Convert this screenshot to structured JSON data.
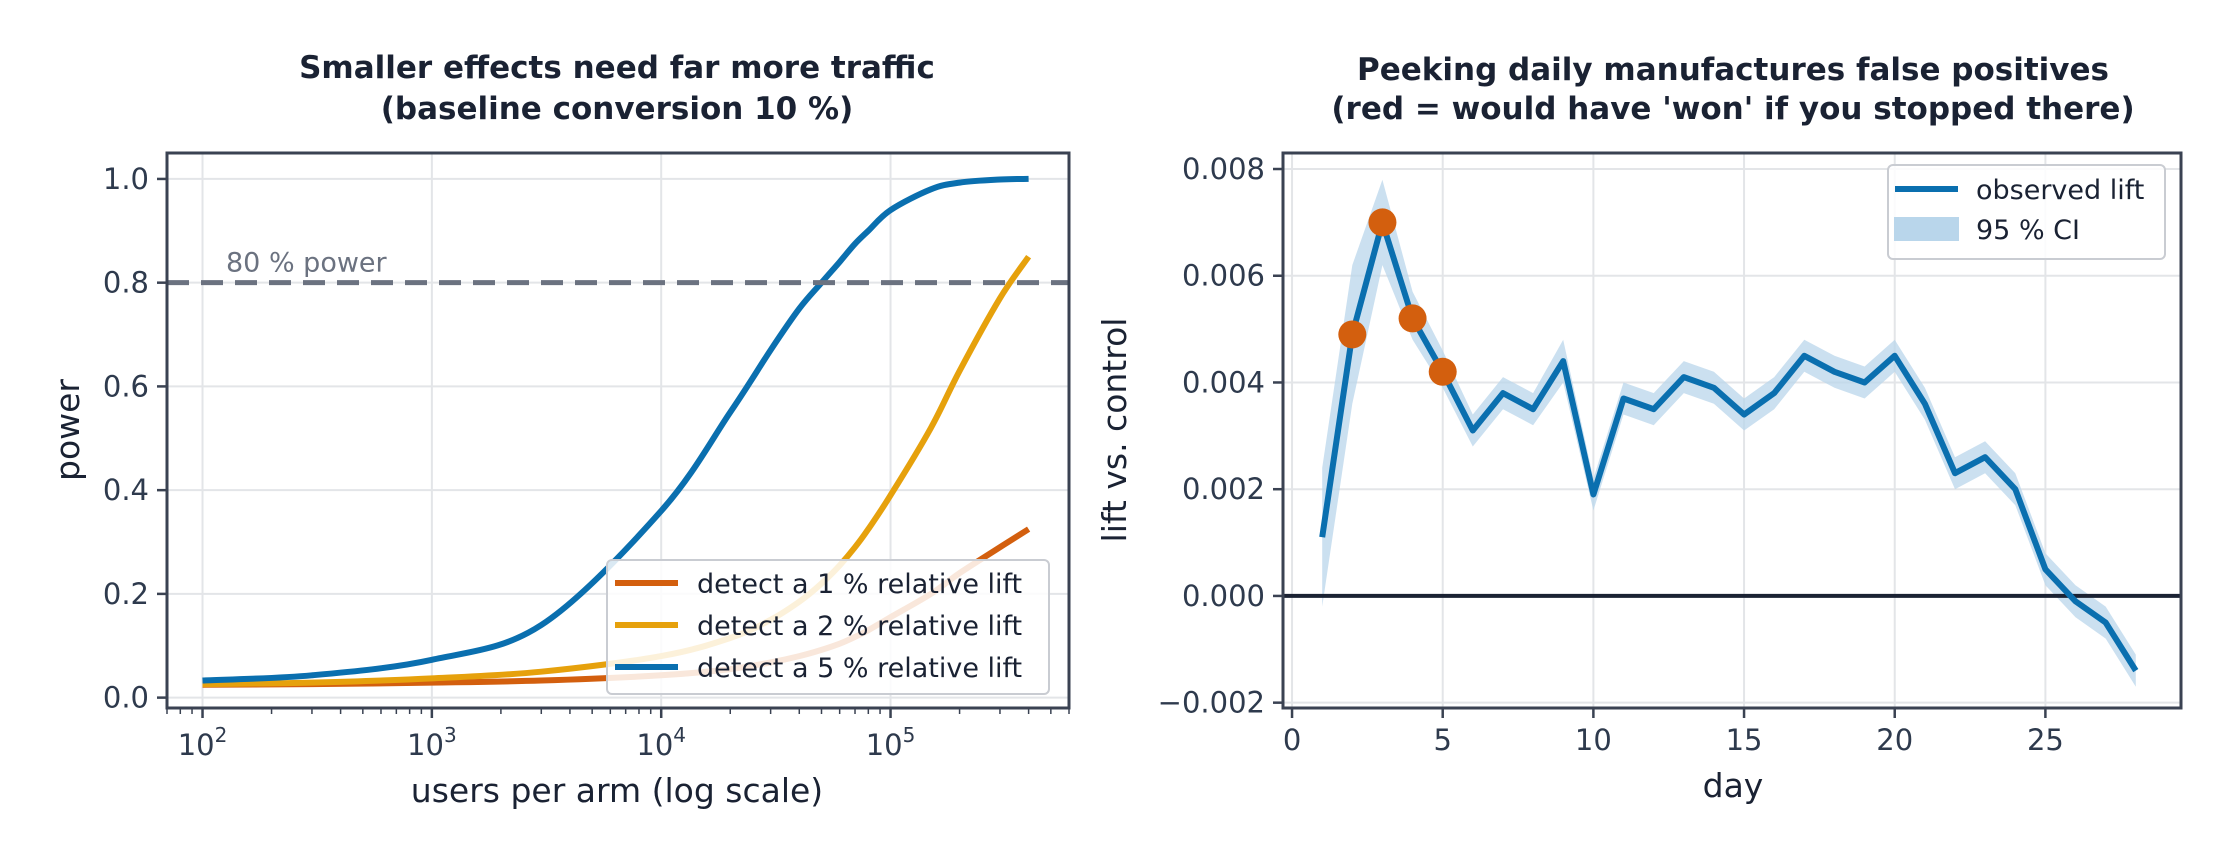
{
  "chart_data": [
    {
      "type": "line",
      "title": "Smaller effects need far more traffic",
      "subtitle": "(baseline conversion 10 %)",
      "xlabel": "users per arm (log scale)",
      "ylabel": "power",
      "xscale": "log",
      "xlim": [
        70,
        600000
      ],
      "ylim": [
        -0.02,
        1.05
      ],
      "x_ticks": [
        {
          "base": "10",
          "exp": "2"
        },
        {
          "base": "10",
          "exp": "3"
        },
        {
          "base": "10",
          "exp": "4"
        },
        {
          "base": "10",
          "exp": "5"
        }
      ],
      "y_ticks": [
        "0.0",
        "0.2",
        "0.4",
        "0.6",
        "0.8",
        "1.0"
      ],
      "grid": true,
      "legend_position": "lower-right",
      "annotation": "80 % power",
      "reference_line": {
        "y": 0.8,
        "style": "dashed",
        "color": "#6b7280"
      },
      "x": [
        100,
        300,
        1000,
        3000,
        10000,
        20000,
        30000,
        40000,
        50000,
        60000,
        70000,
        80000,
        100000,
        150000,
        200000,
        300000,
        400000
      ],
      "series": [
        {
          "name": "detect a 1 % relative lift",
          "color": "#d35f0e",
          "y": [
            0.025,
            0.026,
            0.029,
            0.033,
            0.043,
            0.055,
            0.068,
            0.08,
            0.092,
            0.104,
            0.117,
            0.13,
            0.155,
            0.2,
            0.24,
            0.29,
            0.325
          ]
        },
        {
          "name": "detect a 2 % relative lift",
          "color": "#e6a10c",
          "y": [
            0.026,
            0.029,
            0.037,
            0.05,
            0.08,
            0.115,
            0.15,
            0.185,
            0.22,
            0.255,
            0.29,
            0.325,
            0.39,
            0.52,
            0.63,
            0.77,
            0.85
          ]
        },
        {
          "name": "detect a 5 % relative lift",
          "color": "#0a6faf",
          "y": [
            0.033,
            0.043,
            0.073,
            0.14,
            0.36,
            0.55,
            0.67,
            0.75,
            0.8,
            0.84,
            0.875,
            0.9,
            0.94,
            0.98,
            0.993,
            0.999,
            1.0
          ]
        }
      ]
    },
    {
      "type": "line",
      "title": "Peeking daily manufactures false positives",
      "subtitle": "(red = would have 'won' if you stopped there)",
      "xlabel": "day",
      "ylabel": "lift vs. control",
      "xlim": [
        -0.3,
        29.5
      ],
      "ylim": [
        -0.0021,
        0.0083
      ],
      "x_ticks": [
        "0",
        "5",
        "10",
        "15",
        "20",
        "25"
      ],
      "y_ticks": [
        "−0.002",
        "0.000",
        "0.002",
        "0.004",
        "0.006",
        "0.008"
      ],
      "grid": true,
      "legend_position": "upper-right",
      "zero_line": {
        "y": 0,
        "color": "#1a2233"
      },
      "series": [
        {
          "name": "observed lift",
          "ci_name": "95 % CI",
          "color": "#0a6faf",
          "ci_color": "#b9d6eb",
          "x": [
            1,
            2,
            3,
            4,
            5,
            6,
            7,
            8,
            9,
            10,
            11,
            12,
            13,
            14,
            15,
            16,
            17,
            18,
            19,
            20,
            21,
            22,
            23,
            24,
            25,
            26,
            27,
            28
          ],
          "y": [
            0.0011,
            0.0049,
            0.007,
            0.0052,
            0.0042,
            0.0031,
            0.0038,
            0.0035,
            0.0044,
            0.0019,
            0.0037,
            0.0035,
            0.0041,
            0.0039,
            0.0034,
            0.0038,
            0.0045,
            0.0042,
            0.004,
            0.0045,
            0.0036,
            0.0023,
            0.0026,
            0.002,
            0.0005,
            -0.0001,
            -0.0005,
            -0.0014
          ],
          "ci_low": [
            -0.0002,
            0.0036,
            0.0062,
            0.0048,
            0.0039,
            0.0028,
            0.0035,
            0.0032,
            0.004,
            0.0016,
            0.0034,
            0.0032,
            0.0038,
            0.0036,
            0.0031,
            0.0035,
            0.0042,
            0.0039,
            0.0037,
            0.0042,
            0.0033,
            0.002,
            0.0023,
            0.0017,
            0.0002,
            -0.0004,
            -0.0008,
            -0.0017
          ],
          "ci_high": [
            0.0024,
            0.0062,
            0.0078,
            0.0057,
            0.0046,
            0.0034,
            0.0041,
            0.0038,
            0.0048,
            0.0022,
            0.004,
            0.0038,
            0.0044,
            0.0042,
            0.0037,
            0.0041,
            0.0048,
            0.0045,
            0.0043,
            0.0048,
            0.0039,
            0.0026,
            0.0029,
            0.0023,
            0.0008,
            0.0002,
            -0.0002,
            -0.0011
          ]
        }
      ],
      "highlight_points": {
        "color": "#d35f0e",
        "x": [
          2,
          3,
          4,
          5
        ],
        "y": [
          0.0049,
          0.007,
          0.0052,
          0.0042
        ]
      }
    }
  ]
}
